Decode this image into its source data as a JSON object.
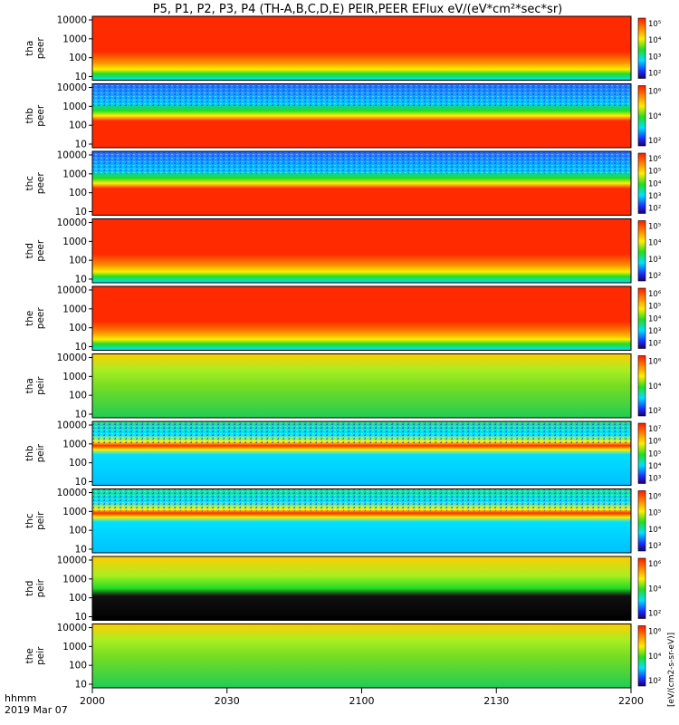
{
  "title": "P5, P1, P2, P3, P4 (TH-A,B,C,D,E) PEIR,PEER EFlux eV/(eV*cm²*sec*sr)",
  "colorbar_label": "[eV/(cm2-s-sr-eV)]",
  "time_axis": {
    "label_line1": "hhmm",
    "label_line2": "2019 Mar 07",
    "ticks": [
      "2000",
      "2030",
      "2100",
      "2130",
      "2200"
    ]
  },
  "colors": {
    "red": "#ff2a00",
    "orange": "#ff8c00",
    "yellow": "#ffee00",
    "green": "#22dd22",
    "cyan": "#00e0ff",
    "blue": "#1a2cff",
    "black": "#000000"
  },
  "chart_data": {
    "type": "heatmap",
    "x_range": [
      "20:00",
      "22:00"
    ],
    "yscale": "log",
    "y_ticks": [
      "10",
      "100",
      "1000",
      "10000"
    ],
    "panels": [
      {
        "ylabel": "tha peer",
        "palette": "mostly-red",
        "cb_ticks": [
          "10⁵",
          "10⁴",
          "10³",
          "10²"
        ]
      },
      {
        "ylabel": "thb peer",
        "palette": "noisy-low",
        "cb_ticks": [
          "10⁶",
          "10⁴",
          "10²"
        ]
      },
      {
        "ylabel": "thc peer",
        "palette": "noisy-low",
        "cb_ticks": [
          "10⁶",
          "10⁵",
          "10⁴",
          "10³",
          "10²"
        ]
      },
      {
        "ylabel": "thd peer",
        "palette": "mostly-red",
        "cb_ticks": [
          "10⁵",
          "10⁴",
          "10³",
          "10²"
        ]
      },
      {
        "ylabel": "the peer",
        "palette": "mostly-red",
        "cb_ticks": [
          "10⁶",
          "10⁵",
          "10⁴",
          "10³",
          "10²"
        ]
      },
      {
        "ylabel": "tha peir",
        "palette": "green",
        "cb_ticks": [
          "10⁶",
          "10⁴",
          "10²"
        ]
      },
      {
        "ylabel": "thb peir",
        "palette": "cyan-band",
        "cb_ticks": [
          "10⁷",
          "10⁶",
          "10⁵",
          "10⁴",
          "10³"
        ]
      },
      {
        "ylabel": "thc peir",
        "palette": "cyan-band",
        "cb_ticks": [
          "10⁶",
          "10⁵",
          "10⁴",
          "10³"
        ]
      },
      {
        "ylabel": "thd peir",
        "palette": "green-black",
        "cb_ticks": [
          "10⁶",
          "10⁴",
          "10²"
        ]
      },
      {
        "ylabel": "the peir",
        "palette": "green",
        "cb_ticks": [
          "10⁶",
          "10⁴",
          "10²"
        ]
      }
    ]
  }
}
